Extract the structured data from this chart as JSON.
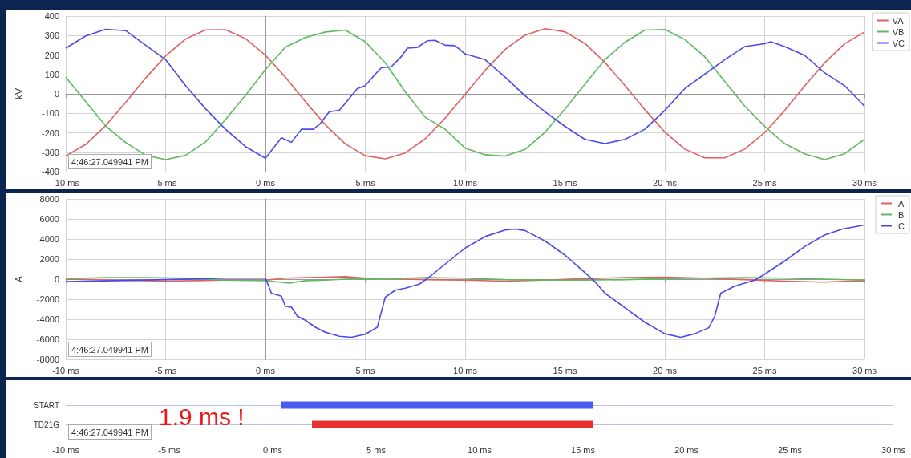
{
  "chart_data": [
    {
      "type": "line",
      "ylabel": "kV",
      "xlim": [
        -10,
        30
      ],
      "ylim": [
        -400,
        400
      ],
      "xticks": [
        {
          "value": -10,
          "label": "-10 ms"
        },
        {
          "value": -5,
          "label": "-5 ms"
        },
        {
          "value": 0,
          "label": "0 ms"
        },
        {
          "value": 5,
          "label": "5 ms"
        },
        {
          "value": 10,
          "label": "10 ms"
        },
        {
          "value": 15,
          "label": "15 ms"
        },
        {
          "value": 20,
          "label": "20 ms"
        },
        {
          "value": 25,
          "label": "25 ms"
        },
        {
          "value": 30,
          "label": "30 ms"
        }
      ],
      "yticks": [
        -400,
        -300,
        -200,
        -100,
        0,
        100,
        200,
        300,
        400
      ],
      "grid": true,
      "legend": "top right",
      "annotations": [
        "4:46:27.049941 PM"
      ],
      "series": [
        {
          "name": "VA",
          "color": "#e06060",
          "x": [
            -10,
            -9,
            -8,
            -7,
            -6,
            -5,
            -4,
            -3,
            -2,
            -1,
            0,
            1,
            2,
            3,
            4,
            5,
            6,
            7,
            8,
            9,
            10,
            11,
            12,
            13,
            14,
            15,
            16,
            17,
            18,
            19,
            20,
            21,
            22,
            23,
            24,
            25,
            26,
            27,
            28,
            29,
            30
          ],
          "values": [
            -319,
            -260,
            -163,
            -44,
            81,
            195,
            282,
            329,
            330,
            284,
            199,
            86,
            -40,
            -159,
            -257,
            -318,
            -334,
            -304,
            -231,
            -125,
            -2,
            121,
            228,
            302,
            335,
            319,
            259,
            162,
            43,
            -81,
            -196,
            -284,
            -329,
            -329,
            -284,
            -199,
            -86,
            40,
            159,
            257,
            318
          ]
        },
        {
          "name": "VB",
          "color": "#60b860",
          "x": [
            -10,
            -9,
            -8,
            -7,
            -6,
            -5,
            -4,
            -3,
            -2,
            -1,
            0,
            1,
            2,
            3,
            4,
            5,
            6,
            7,
            8,
            9,
            10,
            11,
            12,
            13,
            14,
            15,
            16,
            17,
            18,
            19,
            20,
            21,
            22,
            23,
            24,
            25,
            26,
            27,
            28,
            29,
            30
          ],
          "values": [
            86,
            -40,
            -165,
            -250,
            -315,
            -338,
            -316,
            -247,
            -132,
            -8,
            125,
            240,
            290,
            318,
            328,
            268,
            160,
            10,
            -120,
            -182,
            -279,
            -313,
            -320,
            -286,
            -197,
            -78,
            49,
            176,
            265,
            328,
            331,
            280,
            191,
            64,
            -63,
            -167,
            -256,
            -308,
            -338,
            -308,
            -234
          ]
        },
        {
          "name": "VC",
          "color": "#4a4ae8",
          "x": [
            -10,
            -9,
            -8,
            -7,
            -6,
            -5,
            -4,
            -3,
            -2,
            -1,
            0,
            0.8,
            1.3,
            1.8,
            2.4,
            2.75,
            3.2,
            3.7,
            4,
            4.6,
            5,
            5.5,
            5.8,
            6.3,
            6.8,
            7.1,
            7.6,
            8.1,
            8.5,
            9,
            9.5,
            10,
            11,
            12,
            13,
            14,
            15,
            16,
            17,
            18,
            19,
            20,
            21,
            22,
            23,
            24,
            25,
            25.3,
            26,
            27,
            28,
            29,
            30
          ],
          "values": [
            235,
            298,
            332,
            325,
            250,
            176,
            42,
            -77,
            -182,
            -271,
            -331,
            -226,
            -249,
            -182,
            -182,
            -152,
            -92,
            -85,
            -48,
            27,
            42,
            101,
            134,
            139,
            191,
            235,
            238,
            273,
            275,
            250,
            248,
            205,
            176,
            86,
            -10,
            -92,
            -167,
            -234,
            -256,
            -234,
            -182,
            -85,
            27,
            101,
            176,
            243,
            258,
            268,
            243,
            198,
            109,
            42,
            -63
          ]
        }
      ]
    },
    {
      "type": "line",
      "ylabel": "A",
      "xlim": [
        -10,
        30
      ],
      "ylim": [
        -8000,
        8000
      ],
      "xticks": [
        {
          "value": -10,
          "label": "-10 ms"
        },
        {
          "value": -5,
          "label": "-5 ms"
        },
        {
          "value": 0,
          "label": "0 ms"
        },
        {
          "value": 5,
          "label": "5 ms"
        },
        {
          "value": 10,
          "label": "10 ms"
        },
        {
          "value": 15,
          "label": "15 ms"
        },
        {
          "value": 20,
          "label": "20 ms"
        },
        {
          "value": 25,
          "label": "25 ms"
        },
        {
          "value": 30,
          "label": "30 ms"
        }
      ],
      "yticks": [
        -8000,
        -6000,
        -4000,
        -2000,
        0,
        2000,
        4000,
        6000,
        8000
      ],
      "grid": true,
      "legend": "top right",
      "annotations": [
        "4:46:27.049941 PM"
      ],
      "series": [
        {
          "name": "IA",
          "color": "#e06060",
          "x": [
            -10,
            -5,
            -2,
            0,
            1,
            2,
            3,
            4,
            5,
            6,
            7,
            8,
            10,
            12,
            14,
            16,
            18,
            20,
            22,
            24,
            26,
            28,
            30
          ],
          "values": [
            0,
            -200,
            -100,
            -100,
            100,
            150,
            200,
            250,
            100,
            100,
            0,
            -50,
            -100,
            -200,
            -100,
            50,
            150,
            200,
            100,
            -50,
            -200,
            -300,
            -150
          ]
        },
        {
          "name": "IB",
          "color": "#60b860",
          "x": [
            -10,
            -8,
            -6,
            -4,
            -2,
            0,
            1.2,
            2,
            3,
            4,
            5,
            6,
            7,
            8,
            10,
            12,
            14,
            16,
            18,
            20,
            22,
            24,
            26,
            28,
            30
          ],
          "values": [
            50,
            150,
            150,
            100,
            -100,
            -150,
            -400,
            -150,
            -100,
            0,
            50,
            0,
            100,
            150,
            100,
            -50,
            -100,
            -100,
            -50,
            50,
            100,
            150,
            100,
            0,
            -100
          ]
        },
        {
          "name": "IC",
          "color": "#4a4ae8",
          "x": [
            -10,
            -5,
            -2,
            0,
            0.3,
            0.8,
            1,
            1.3,
            1.6,
            2,
            2.5,
            3,
            3.7,
            4.3,
            5,
            5.6,
            6,
            6.5,
            7,
            7.7,
            8.2,
            9,
            10,
            11,
            12,
            12.5,
            13,
            14,
            15,
            16,
            16.5,
            17,
            18,
            19,
            20,
            20.8,
            21.5,
            22.2,
            22.5,
            22.8,
            23.5,
            24.5,
            25,
            26,
            27,
            28,
            28.9,
            30
          ],
          "values": [
            -250,
            -50,
            100,
            100,
            -1400,
            -1700,
            -2700,
            -2800,
            -3700,
            -4100,
            -4800,
            -5300,
            -5700,
            -5800,
            -5500,
            -4800,
            -1800,
            -1100,
            -900,
            -500,
            200,
            1500,
            3100,
            4250,
            4900,
            5000,
            4850,
            3800,
            2400,
            650,
            -250,
            -1400,
            -2850,
            -4300,
            -5450,
            -5800,
            -5450,
            -4850,
            -3700,
            -1400,
            -700,
            -100,
            500,
            1800,
            3250,
            4400,
            5000,
            5400
          ]
        }
      ]
    },
    {
      "type": "bar",
      "orientation": "horizontal",
      "categories": [
        "START",
        "TD21G"
      ],
      "values": [
        15.1,
        13.6
      ],
      "base": [
        0.4,
        1.9
      ],
      "colors": [
        "#4a5cf0",
        "#e83030"
      ],
      "xlim": [
        -10,
        30
      ],
      "xticks": [
        {
          "value": -10,
          "label": "-10 ms"
        },
        {
          "value": -5,
          "label": "-5 ms"
        },
        {
          "value": 0,
          "label": "0 ms"
        },
        {
          "value": 5,
          "label": "5 ms"
        },
        {
          "value": 10,
          "label": "10 ms"
        },
        {
          "value": 15,
          "label": "15 ms"
        },
        {
          "value": 20,
          "label": "20 ms"
        },
        {
          "value": 25,
          "label": "25 ms"
        },
        {
          "value": 30,
          "label": "30 ms"
        }
      ],
      "grid": "y",
      "annotations": [
        "4:46:27.049941 PM",
        "1.9 ms !"
      ]
    }
  ]
}
